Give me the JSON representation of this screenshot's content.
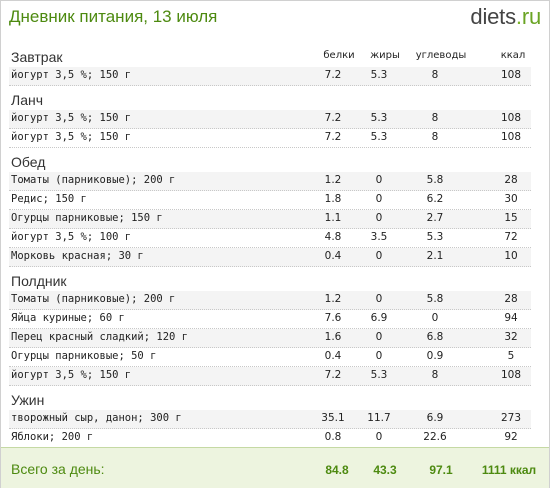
{
  "header": {
    "title": "Дневник питания, 13 июля",
    "logo_name": "diets",
    "logo_dot": ".",
    "logo_tld": "ru"
  },
  "columns": {
    "protein": "белки",
    "fat": "жиры",
    "carbs": "углеводы",
    "kcal": "ккал"
  },
  "meals": [
    {
      "title": "Завтрак",
      "items": [
        {
          "name": "йогурт 3,5 %; 150 г",
          "protein": "7.2",
          "fat": "5.3",
          "carbs": "8",
          "kcal": "108"
        }
      ]
    },
    {
      "title": "Ланч",
      "items": [
        {
          "name": "йогурт 3,5 %; 150 г",
          "protein": "7.2",
          "fat": "5.3",
          "carbs": "8",
          "kcal": "108"
        },
        {
          "name": "йогурт 3,5 %; 150 г",
          "protein": "7.2",
          "fat": "5.3",
          "carbs": "8",
          "kcal": "108"
        }
      ]
    },
    {
      "title": "Обед",
      "items": [
        {
          "name": "Томаты (парниковые); 200 г",
          "protein": "1.2",
          "fat": "0",
          "carbs": "5.8",
          "kcal": "28"
        },
        {
          "name": "Редис; 150 г",
          "protein": "1.8",
          "fat": "0",
          "carbs": "6.2",
          "kcal": "30"
        },
        {
          "name": "Огурцы парниковые; 150 г",
          "protein": "1.1",
          "fat": "0",
          "carbs": "2.7",
          "kcal": "15"
        },
        {
          "name": "йогурт 3,5 %; 100 г",
          "protein": "4.8",
          "fat": "3.5",
          "carbs": "5.3",
          "kcal": "72"
        },
        {
          "name": "Морковь красная; 30 г",
          "protein": "0.4",
          "fat": "0",
          "carbs": "2.1",
          "kcal": "10"
        }
      ]
    },
    {
      "title": "Полдник",
      "items": [
        {
          "name": "Томаты (парниковые); 200 г",
          "protein": "1.2",
          "fat": "0",
          "carbs": "5.8",
          "kcal": "28"
        },
        {
          "name": "Яйца куриные; 60 г",
          "protein": "7.6",
          "fat": "6.9",
          "carbs": "0",
          "kcal": "94"
        },
        {
          "name": "Перец красный сладкий; 120 г",
          "protein": "1.6",
          "fat": "0",
          "carbs": "6.8",
          "kcal": "32"
        },
        {
          "name": "Огурцы парниковые; 50 г",
          "protein": "0.4",
          "fat": "0",
          "carbs": "0.9",
          "kcal": "5"
        },
        {
          "name": "йогурт 3,5 %; 150 г",
          "protein": "7.2",
          "fat": "5.3",
          "carbs": "8",
          "kcal": "108"
        }
      ]
    },
    {
      "title": "Ужин",
      "items": [
        {
          "name": "творожный сыр, данон; 300 г",
          "protein": "35.1",
          "fat": "11.7",
          "carbs": "6.9",
          "kcal": "273"
        },
        {
          "name": "Яблоки; 200 г",
          "protein": "0.8",
          "fat": "0",
          "carbs": "22.6",
          "kcal": "92"
        }
      ]
    }
  ],
  "total": {
    "label": "Всего за день:",
    "protein": "84.8",
    "fat": "43.3",
    "carbs": "97.1",
    "kcal": "1111 ккал"
  },
  "colors": {
    "accent_green": "#4d8a10",
    "total_bg": "#edf4df",
    "row_shade": "#f4f4f4"
  }
}
